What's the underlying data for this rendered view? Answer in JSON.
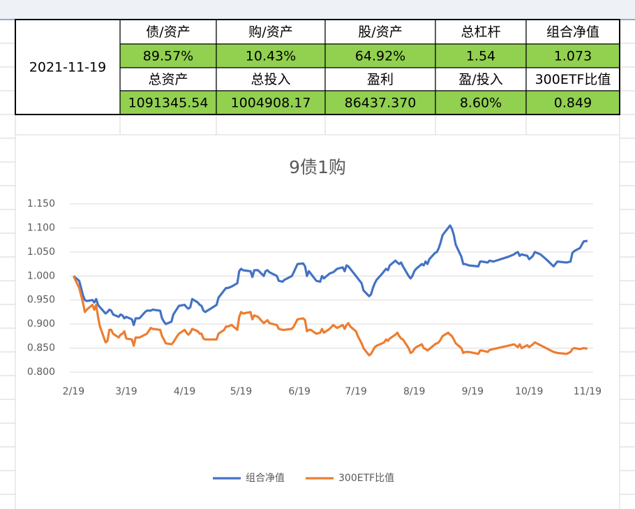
{
  "table": {
    "date": "2021-11-19",
    "rows": [
      [
        "债/资产",
        "购/资产",
        "股/资产",
        "总杠杆",
        "组合净值"
      ],
      [
        "89.57%",
        "10.43%",
        "64.92%",
        "1.54",
        "1.073"
      ],
      [
        "总资产",
        "总投入",
        "盈利",
        "盈/投入",
        "300ETF比值"
      ],
      [
        "1091345.54",
        "1004908.17",
        "86437.370",
        "8.60%",
        "0.849"
      ]
    ]
  },
  "chart_data": {
    "type": "line",
    "title": "9债1购",
    "x": [
      "2/19",
      "2/22",
      "2/24",
      "2/25",
      "2/26",
      "3/1",
      "3/2",
      "3/3",
      "3/4",
      "3/5",
      "3/8",
      "3/9",
      "3/10",
      "3/11",
      "3/12",
      "3/15",
      "3/16",
      "3/17",
      "3/18",
      "3/19",
      "3/22",
      "3/23",
      "3/24",
      "3/26",
      "3/29",
      "3/30",
      "4/1",
      "4/2",
      "4/6",
      "4/7",
      "4/8",
      "4/9",
      "4/12",
      "4/13",
      "4/15",
      "4/16",
      "4/19",
      "4/20",
      "4/21",
      "4/22",
      "4/23",
      "4/26",
      "4/27",
      "4/28",
      "4/29",
      "4/30",
      "5/6",
      "5/7",
      "5/10",
      "5/11",
      "5/12",
      "5/14",
      "5/17",
      "5/18",
      "5/19",
      "5/20",
      "5/24",
      "5/25",
      "5/26",
      "5/28",
      "5/31",
      "6/1",
      "6/2",
      "6/3",
      "6/7",
      "6/8",
      "6/10",
      "6/11",
      "6/15",
      "6/16",
      "6/18",
      "6/21",
      "6/22",
      "6/23",
      "6/24",
      "6/25",
      "6/28",
      "6/30",
      "7/1",
      "7/2",
      "7/5",
      "7/7",
      "7/9",
      "7/12",
      "7/13",
      "7/14",
      "7/15",
      "7/16",
      "7/19",
      "7/20",
      "7/22",
      "7/23",
      "7/26",
      "7/27",
      "7/28",
      "7/29",
      "7/30",
      "8/2",
      "8/3",
      "8/4",
      "8/5",
      "8/6",
      "8/9",
      "8/10",
      "8/11",
      "8/12",
      "8/13",
      "8/16",
      "8/17",
      "8/18",
      "8/19",
      "8/20",
      "8/23",
      "8/24",
      "8/25",
      "8/26",
      "8/27",
      "8/30",
      "8/31",
      "9/1",
      "9/2",
      "9/3",
      "9/6",
      "9/7",
      "9/8",
      "9/9",
      "9/10",
      "9/13",
      "9/14",
      "9/15",
      "9/17",
      "9/22",
      "9/23",
      "9/24",
      "9/27",
      "9/28",
      "9/30",
      "10/8",
      "10/11",
      "10/12",
      "10/13",
      "10/14",
      "10/15",
      "10/18",
      "10/19",
      "10/20",
      "10/21",
      "10/22",
      "10/25",
      "10/28",
      "11/1",
      "11/3",
      "11/8",
      "11/10",
      "11/11",
      "11/12",
      "11/15",
      "11/17",
      "11/19"
    ],
    "series": [
      {
        "name": "组合净值",
        "color": "#4472c4",
        "values": [
          1.0,
          0.99,
          0.96,
          0.95,
          0.948,
          0.95,
          0.945,
          0.952,
          0.94,
          0.935,
          0.922,
          0.925,
          0.93,
          0.928,
          0.92,
          0.915,
          0.92,
          0.918,
          0.912,
          0.915,
          0.91,
          0.898,
          0.912,
          0.912,
          0.925,
          0.928,
          0.928,
          0.93,
          0.928,
          0.912,
          0.905,
          0.9,
          0.905,
          0.92,
          0.932,
          0.938,
          0.94,
          0.935,
          0.932,
          0.935,
          0.952,
          0.945,
          0.94,
          0.938,
          0.928,
          0.925,
          0.94,
          0.955,
          0.97,
          0.975,
          0.975,
          0.978,
          0.985,
          1.01,
          1.015,
          1.012,
          1.01,
          0.998,
          1.012,
          1.012,
          1.0,
          1.01,
          1.012,
          1.008,
          1.0,
          0.99,
          0.988,
          0.992,
          1.0,
          1.008,
          1.025,
          1.026,
          1.02,
          1.0,
          1.01,
          1.005,
          0.99,
          0.988,
          1.0,
          0.995,
          1.005,
          1.008,
          1.015,
          1.018,
          1.01,
          1.022,
          1.02,
          1.015,
          1.0,
          0.995,
          0.985,
          0.97,
          0.958,
          0.962,
          0.975,
          0.985,
          0.992,
          1.005,
          1.01,
          1.015,
          1.012,
          1.022,
          1.032,
          1.028,
          1.025,
          1.028,
          1.02,
          1.0,
          0.995,
          1.0,
          1.01,
          1.015,
          1.025,
          1.022,
          1.03,
          1.025,
          1.035,
          1.048,
          1.05,
          1.058,
          1.07,
          1.085,
          1.1,
          1.105,
          1.098,
          1.085,
          1.065,
          1.04,
          1.025,
          1.025,
          1.022,
          1.02,
          1.03,
          1.03,
          1.028,
          1.032,
          1.03,
          1.04,
          1.045,
          1.048,
          1.05,
          1.042,
          1.045,
          1.042,
          1.035,
          1.038,
          1.042,
          1.05,
          1.045,
          1.035,
          1.02,
          1.03,
          1.028,
          1.03,
          1.048,
          1.052,
          1.058,
          1.072,
          1.073
        ]
      },
      {
        "name": "300ETF比值",
        "color": "#ed7d31",
        "values": [
          1.0,
          0.975,
          0.945,
          0.925,
          0.93,
          0.94,
          0.93,
          0.94,
          0.915,
          0.895,
          0.862,
          0.865,
          0.888,
          0.888,
          0.88,
          0.872,
          0.878,
          0.88,
          0.885,
          0.87,
          0.868,
          0.855,
          0.872,
          0.872,
          0.878,
          0.88,
          0.892,
          0.89,
          0.888,
          0.875,
          0.868,
          0.86,
          0.858,
          0.862,
          0.875,
          0.88,
          0.888,
          0.882,
          0.878,
          0.882,
          0.89,
          0.885,
          0.88,
          0.88,
          0.87,
          0.868,
          0.868,
          0.88,
          0.888,
          0.895,
          0.895,
          0.898,
          0.888,
          0.915,
          0.925,
          0.922,
          0.925,
          0.91,
          0.918,
          0.915,
          0.902,
          0.905,
          0.908,
          0.902,
          0.898,
          0.89,
          0.888,
          0.888,
          0.89,
          0.895,
          0.91,
          0.912,
          0.908,
          0.885,
          0.888,
          0.888,
          0.88,
          0.882,
          0.89,
          0.882,
          0.89,
          0.898,
          0.892,
          0.898,
          0.89,
          0.898,
          0.902,
          0.895,
          0.885,
          0.875,
          0.86,
          0.85,
          0.835,
          0.838,
          0.845,
          0.852,
          0.855,
          0.86,
          0.862,
          0.868,
          0.865,
          0.87,
          0.878,
          0.882,
          0.875,
          0.87,
          0.868,
          0.85,
          0.84,
          0.842,
          0.848,
          0.852,
          0.858,
          0.85,
          0.848,
          0.845,
          0.848,
          0.858,
          0.86,
          0.862,
          0.868,
          0.875,
          0.882,
          0.878,
          0.875,
          0.868,
          0.86,
          0.85,
          0.84,
          0.842,
          0.842,
          0.838,
          0.845,
          0.845,
          0.842,
          0.846,
          0.848,
          0.855,
          0.858,
          0.855,
          0.852,
          0.858,
          0.85,
          0.856,
          0.852,
          0.855,
          0.858,
          0.862,
          0.856,
          0.85,
          0.842,
          0.84,
          0.838,
          0.842,
          0.848,
          0.85,
          0.848,
          0.85,
          0.849
        ]
      }
    ],
    "xlim": [
      "2/17",
      "11/22"
    ],
    "xticks": [
      "2/19",
      "3/19",
      "4/19",
      "5/19",
      "6/19",
      "7/19",
      "8/19",
      "9/19",
      "10/19",
      "11/19"
    ],
    "ylim": [
      0.8,
      1.15
    ],
    "yticks": [
      {
        "value": 0.8,
        "label": "0.800"
      },
      {
        "value": 0.85,
        "label": "0.850"
      },
      {
        "value": 0.9,
        "label": "0.900"
      },
      {
        "value": 0.95,
        "label": "0.950"
      },
      {
        "value": 1.0,
        "label": "1.000"
      },
      {
        "value": 1.05,
        "label": "1.050"
      },
      {
        "value": 1.1,
        "label": "1.100"
      },
      {
        "value": 1.15,
        "label": "1.150"
      }
    ],
    "grid": true,
    "legend": "bottom"
  }
}
